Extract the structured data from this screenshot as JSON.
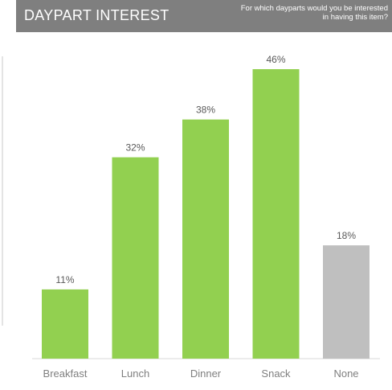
{
  "header": {
    "title": "DAYPART INTEREST",
    "subtitle": "For which dayparts would you be interested in having this item?"
  },
  "colors": {
    "header_bg": "#7f7f7f",
    "bar_primary": "#92d050",
    "bar_none": "#bfbfbf",
    "axis": "#d9d9d9"
  },
  "chart_data": {
    "type": "bar",
    "categories": [
      "Breakfast",
      "Lunch",
      "Dinner",
      "Snack",
      "None"
    ],
    "values": [
      11,
      32,
      38,
      46,
      18
    ],
    "value_labels": [
      "11%",
      "32%",
      "38%",
      "46%",
      "18%"
    ],
    "bar_colors": [
      "#92d050",
      "#92d050",
      "#92d050",
      "#92d050",
      "#bfbfbf"
    ],
    "ylim": [
      0,
      46
    ],
    "grid": false,
    "legend": "none"
  }
}
